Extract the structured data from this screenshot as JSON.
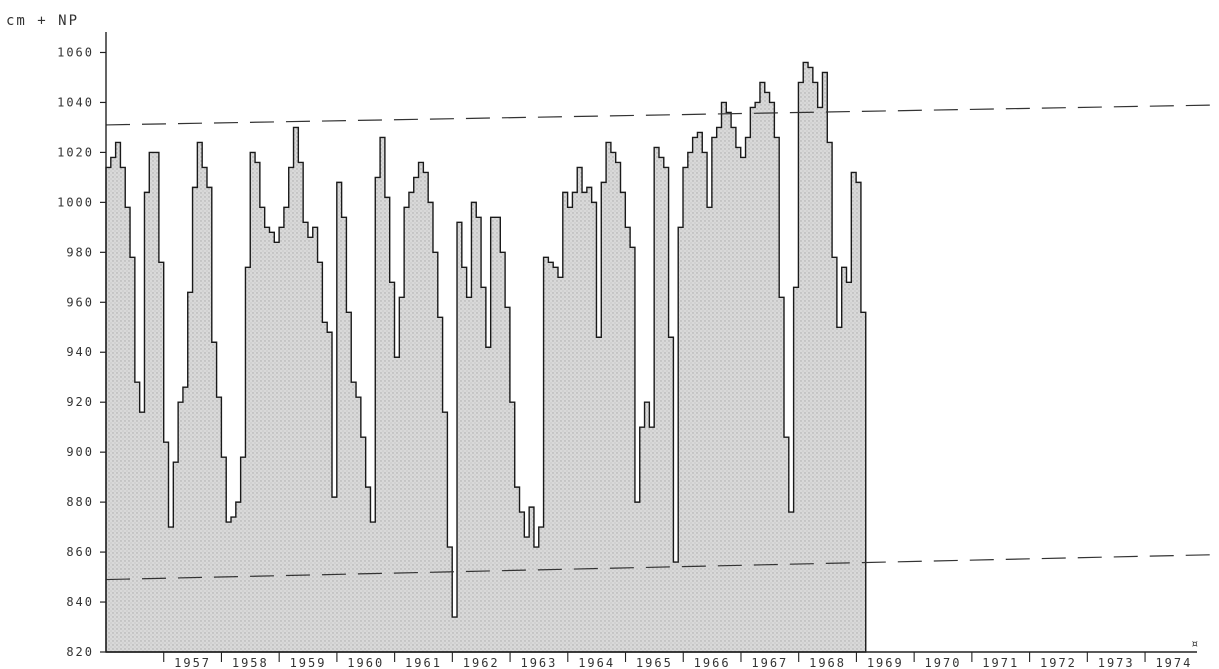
{
  "chart_data": {
    "type": "area",
    "ylabel": "cm + NP",
    "ylim": [
      820,
      1065
    ],
    "yticks": [
      820,
      840,
      860,
      880,
      900,
      920,
      940,
      960,
      980,
      1000,
      1020,
      1040,
      1060
    ],
    "x_unit": "year",
    "xlim": [
      1956.0,
      1974.9
    ],
    "year_labels": [
      "1957",
      "1958",
      "1959",
      "1960",
      "1961",
      "1962",
      "1963",
      "1964",
      "1965",
      "1966",
      "1967",
      "1968",
      "1969",
      "1970",
      "1971",
      "1972",
      "1973",
      "1974"
    ],
    "year_label_suffix": "¤",
    "grid": false,
    "step_width_years": 0.0833,
    "series": [
      {
        "kind": "monthly-step",
        "values": [
          1014,
          1018,
          1024,
          1014,
          998,
          978,
          928,
          916,
          1004,
          1020,
          1020,
          976,
          904,
          870,
          896,
          920,
          926,
          964,
          1006,
          1024,
          1014,
          1006,
          944,
          922,
          898,
          872,
          874,
          880,
          898,
          974,
          1020,
          1016,
          998,
          990,
          988,
          984,
          990,
          998,
          1014,
          1030,
          1016,
          992,
          986,
          990,
          976,
          952,
          948,
          882,
          1008,
          994,
          956,
          928,
          922,
          906,
          886,
          872,
          1010,
          1026,
          1002,
          968,
          938,
          962,
          998,
          1004,
          1010,
          1016,
          1012,
          1000,
          980,
          954,
          916,
          862,
          834,
          992,
          974,
          962,
          1000,
          994,
          966,
          942,
          994,
          994,
          980,
          958,
          920,
          886,
          876,
          866,
          878,
          862,
          870,
          978,
          976,
          974,
          970,
          1004,
          998,
          1004,
          1014,
          1004,
          1006,
          1000,
          946,
          1008,
          1024,
          1020,
          1016,
          1004,
          990,
          982,
          880,
          910,
          920,
          910,
          1022,
          1018,
          1014,
          946,
          856,
          990,
          1014,
          1020,
          1026,
          1028,
          1020,
          998,
          1026,
          1030,
          1040,
          1036,
          1030,
          1022,
          1018,
          1026,
          1038,
          1040,
          1048,
          1044,
          1040,
          1026,
          962,
          906,
          876,
          966,
          1048,
          1056,
          1054,
          1048,
          1038,
          1052,
          1024,
          978,
          950,
          974,
          968,
          1012,
          1008,
          956
        ]
      }
    ],
    "reference_lines": [
      {
        "style": "dashed",
        "y_start": 1031,
        "y_end": 1039
      },
      {
        "style": "dashed",
        "y_start": 849,
        "y_end": 859
      }
    ]
  }
}
